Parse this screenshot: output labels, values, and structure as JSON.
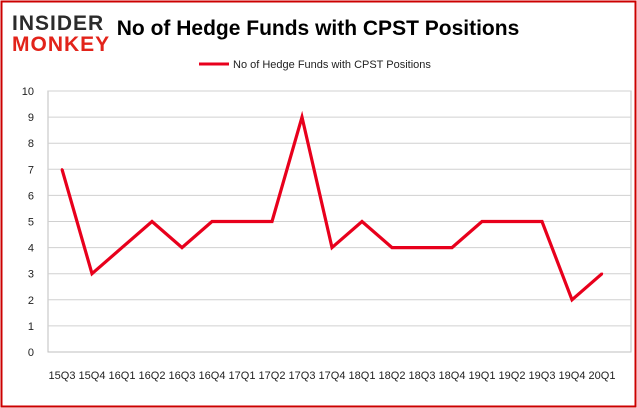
{
  "logo": {
    "line1": "INSIDER",
    "line2": "MONKEY",
    "color_dark": "#2b2b2b",
    "color_accent": "#e2231a"
  },
  "chart_data": {
    "type": "line",
    "title": "No of Hedge Funds with CPST Positions",
    "xlabel": "",
    "ylabel": "",
    "categories": [
      "15Q3",
      "15Q4",
      "16Q1",
      "16Q2",
      "16Q3",
      "16Q4",
      "17Q1",
      "17Q2",
      "17Q3",
      "17Q4",
      "18Q1",
      "18Q2",
      "18Q3",
      "18Q4",
      "19Q1",
      "19Q2",
      "19Q3",
      "19Q4",
      "20Q1"
    ],
    "series": [
      {
        "name": "No of Hedge Funds with CPST Positions",
        "color": "#e8001c",
        "values": [
          7,
          3,
          4,
          5,
          4,
          5,
          5,
          5,
          9,
          4,
          5,
          4,
          4,
          4,
          5,
          5,
          5,
          2,
          3
        ]
      }
    ],
    "ylim": [
      0,
      10
    ],
    "yticks": [
      0,
      1,
      2,
      3,
      4,
      5,
      6,
      7,
      8,
      9,
      10
    ],
    "grid": true,
    "legend_position": "top-center",
    "border_color": "#cc0000"
  }
}
